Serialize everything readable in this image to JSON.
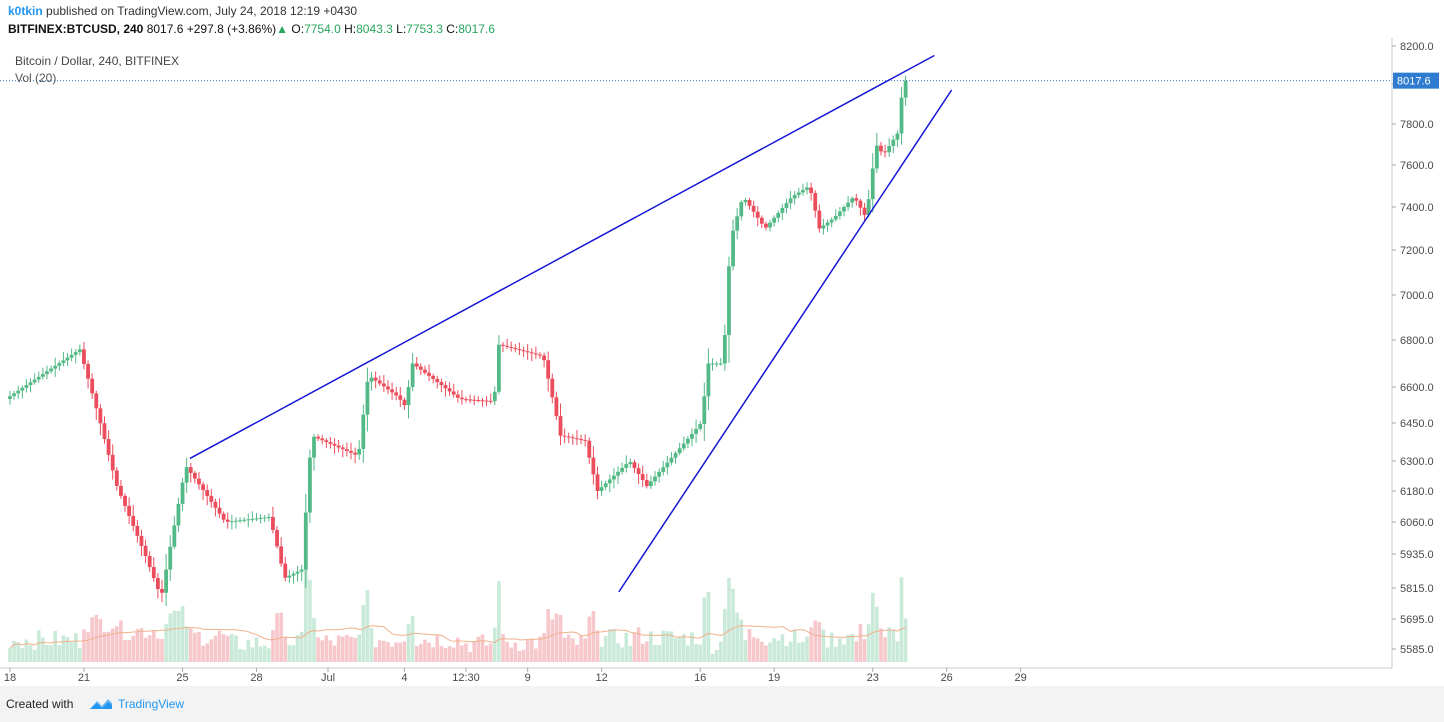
{
  "header": {
    "author": "k0tkin",
    "published": "published on TradingView.com, July 24, 2018 12:19 +0430",
    "symbol": "BITFINEX:BTCUSD, 240",
    "last": "8017.6",
    "change": "+297.8 (+3.86%)",
    "o_label": "O:",
    "o_value": "7754.0",
    "h_label": "H:",
    "h_value": "8043.3",
    "l_label": "L:",
    "l_value": "7753.3",
    "c_label": "C:",
    "c_value": "8017.6"
  },
  "legend": {
    "title": "Bitcoin / Dollar, 240, BITFINEX",
    "volume": "Vol (20)"
  },
  "footer": {
    "created_with": "Created with",
    "brand": "TradingView"
  },
  "colors": {
    "up": "#53b987",
    "down": "#eb4d5c",
    "vol_up": "#c9e9d9",
    "vol_down": "#f6c8cc",
    "trendline": "#1515d6",
    "price_tag": "#2e7bcf",
    "axis_text": "#4a4a4a"
  },
  "chart_data": {
    "type": "candlestick",
    "title": "Bitcoin / Dollar, 240, BITFINEX",
    "price_axis_ticks": [
      5585,
      5695,
      5815,
      5935,
      6060,
      6180,
      6300,
      6450,
      6600,
      6800,
      7000,
      7200,
      7400,
      7600,
      7800,
      8000,
      8200
    ],
    "price_axis_labels": [
      "5585.0",
      "5695.0",
      "5815.0",
      "5935.0",
      "6060.0",
      "6180.0",
      "6300.0",
      "6450.0",
      "6600.0",
      "6800.0",
      "7000.0",
      "7200.0",
      "7400.0",
      "7600.0",
      "7800.0",
      "8000.0",
      "8200.0"
    ],
    "time_axis_labels": [
      {
        "label": "18",
        "day": 18
      },
      {
        "label": "21",
        "day": 21
      },
      {
        "label": "25",
        "day": 25
      },
      {
        "label": "28",
        "day": 28
      },
      {
        "label": "Jul",
        "day": 30.9
      },
      {
        "label": "4",
        "day": 34
      },
      {
        "label": "12:30",
        "day": 36.5
      },
      {
        "label": "9",
        "day": 39
      },
      {
        "label": "12",
        "day": 42
      },
      {
        "label": "16",
        "day": 46
      },
      {
        "label": "19",
        "day": 49
      },
      {
        "label": "23",
        "day": 53
      },
      {
        "label": "26",
        "day": 56
      },
      {
        "label": "29",
        "day": 59
      }
    ],
    "time_unit": "days from June 1 2018 (day 31 = Jul 1)",
    "last_price": "8017.6",
    "series": [
      {
        "name": "Volume",
        "ma_period": 20
      }
    ],
    "key_points": [
      {
        "day": 18.0,
        "price": 6550
      },
      {
        "day": 21.0,
        "price": 6760
      },
      {
        "day": 22.5,
        "price": 6200
      },
      {
        "day": 24.3,
        "price": 5780
      },
      {
        "day": 25.3,
        "price": 6280
      },
      {
        "day": 26.9,
        "price": 6060
      },
      {
        "day": 28.7,
        "price": 6080
      },
      {
        "day": 29.3,
        "price": 5850
      },
      {
        "day": 30.0,
        "price": 5880
      },
      {
        "day": 30.4,
        "price": 6400
      },
      {
        "day": 32.3,
        "price": 6320
      },
      {
        "day": 32.7,
        "price": 6650
      },
      {
        "day": 33.9,
        "price": 6560
      },
      {
        "day": 34.2,
        "price": 6520
      },
      {
        "day": 34.5,
        "price": 6700
      },
      {
        "day": 36.4,
        "price": 6550
      },
      {
        "day": 37.8,
        "price": 6540
      },
      {
        "day": 38.0,
        "price": 6780
      },
      {
        "day": 39.8,
        "price": 6730
      },
      {
        "day": 40.5,
        "price": 6400
      },
      {
        "day": 41.5,
        "price": 6380
      },
      {
        "day": 42.0,
        "price": 6180
      },
      {
        "day": 43.3,
        "price": 6300
      },
      {
        "day": 44.0,
        "price": 6200
      },
      {
        "day": 45.6,
        "price": 6380
      },
      {
        "day": 46.2,
        "price": 6450
      },
      {
        "day": 46.5,
        "price": 6700
      },
      {
        "day": 47.1,
        "price": 6700
      },
      {
        "day": 47.4,
        "price": 7250
      },
      {
        "day": 47.9,
        "price": 7450
      },
      {
        "day": 48.8,
        "price": 7300
      },
      {
        "day": 49.9,
        "price": 7450
      },
      {
        "day": 50.6,
        "price": 7500
      },
      {
        "day": 51.0,
        "price": 7300
      },
      {
        "day": 51.6,
        "price": 7350
      },
      {
        "day": 52.4,
        "price": 7450
      },
      {
        "day": 52.9,
        "price": 7350
      },
      {
        "day": 53.3,
        "price": 7700
      },
      {
        "day": 53.6,
        "price": 7650
      },
      {
        "day": 54.2,
        "price": 7760
      },
      {
        "day": 54.4,
        "price": 8017.6
      }
    ],
    "trendlines": [
      {
        "name": "upper",
        "from": {
          "day": 25.3,
          "price": 6310
        },
        "to": {
          "day": 55.5,
          "price": 8150
        }
      },
      {
        "name": "lower",
        "from": {
          "day": 42.7,
          "price": 5800
        },
        "to": {
          "day": 56.2,
          "price": 7970
        }
      }
    ],
    "grid": false
  }
}
